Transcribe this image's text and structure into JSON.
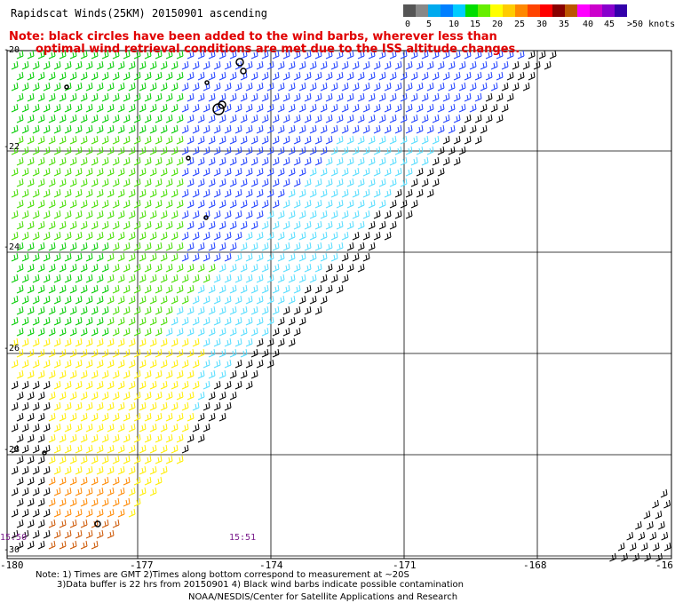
{
  "title": "Rapidscat Winds(25KM) 20150901 ascending",
  "note_line1": "Note: black circles have been added to the wind barbs, wherever less than",
  "note_line2": "optimal wind retrieval conditions are met due to the ISS altitude changes.",
  "colorbar": {
    "colors": [
      "#555555",
      "#888888",
      "#00aaee",
      "#0080ff",
      "#00ccff",
      "#00dd00",
      "#66ee00",
      "#ffff00",
      "#ffcc00",
      "#ff8800",
      "#ff4400",
      "#ff0000",
      "#880000",
      "#bb5500",
      "#ff00ff",
      "#cc00cc",
      "#8800cc",
      "#3300aa"
    ],
    "ticks": [
      "0",
      "5",
      "10",
      "15",
      "20",
      "25",
      "30",
      "35",
      "40",
      "45",
      ">50 knots"
    ]
  },
  "lat_labels": [
    "-20",
    "-22",
    "-24",
    "-26",
    "-28",
    "-30"
  ],
  "lon_labels": [
    "-180",
    "-177",
    "-174",
    "-171",
    "-168",
    "-16"
  ],
  "times": [
    "15:50",
    "15:51"
  ],
  "footer": {
    "line1": "Note: 1) Times are GMT 2)Times along bottom correspond to measurement at ~20S",
    "line2": "3)Data buffer is 22 hrs from 20150901 4) Black wind barbs indicate possible contamination",
    "line3": "NOAA/NESDIS/Center for Satellite Applications and Research"
  }
}
